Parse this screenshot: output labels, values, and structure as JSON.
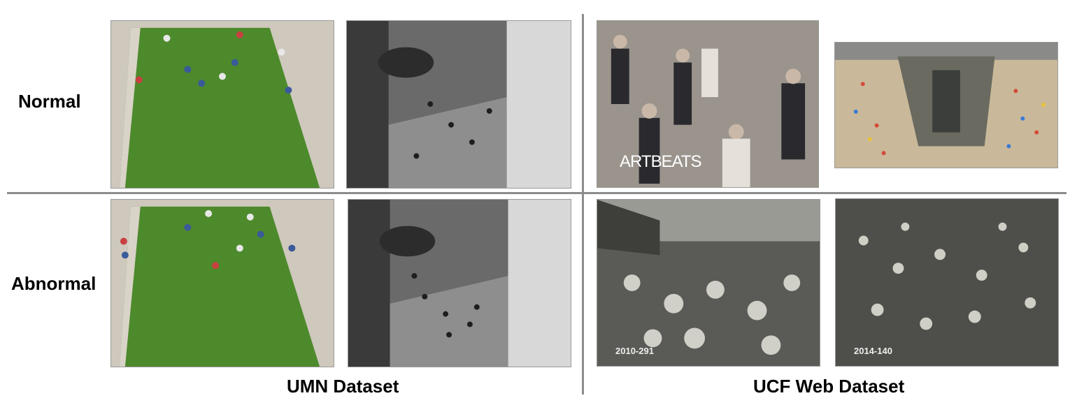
{
  "rows": {
    "normal": "Normal",
    "abnormal": "Abnormal"
  },
  "datasets": {
    "umn": "UMN Dataset",
    "ucf": "UCF Web Dataset"
  },
  "frames": {
    "umn_normal_lawn": {
      "state": "normal",
      "scene": "lawn"
    },
    "umn_normal_hall": {
      "state": "normal",
      "scene": "hall"
    },
    "umn_abnormal_lawn": {
      "state": "abnormal",
      "scene": "lawn"
    },
    "umn_abnormal_hall": {
      "state": "abnormal",
      "scene": "hall"
    },
    "ucf_normal_street": {
      "state": "normal",
      "watermark": "ARTBEATS"
    },
    "ucf_normal_marathon": {
      "state": "normal"
    },
    "ucf_abnormal_crowd1": {
      "state": "abnormal",
      "stamp": "2010-291"
    },
    "ucf_abnormal_crowd2": {
      "state": "abnormal",
      "stamp": "2014-140"
    }
  }
}
